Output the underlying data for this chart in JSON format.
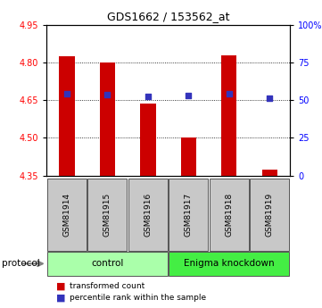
{
  "title": "GDS1662 / 153562_at",
  "samples": [
    "GSM81914",
    "GSM81915",
    "GSM81916",
    "GSM81917",
    "GSM81918",
    "GSM81919"
  ],
  "transformed_counts": [
    4.825,
    4.8,
    4.635,
    4.5,
    4.828,
    4.375
  ],
  "percentile_ranks": [
    54.5,
    53.5,
    52.5,
    52.8,
    54.5,
    51.5
  ],
  "ylim_left": [
    4.35,
    4.95
  ],
  "ylim_right": [
    0,
    100
  ],
  "y_right_ticks": [
    0,
    25,
    50,
    75,
    100
  ],
  "y_right_ticklabels": [
    "0",
    "25",
    "50",
    "75",
    "100%"
  ],
  "y_left_ticks": [
    4.35,
    4.5,
    4.65,
    4.8,
    4.95
  ],
  "bar_color": "#cc0000",
  "dot_color": "#3333bb",
  "sample_box_color": "#c8c8c8",
  "control_color": "#aaffaa",
  "knockdown_color": "#44ee44",
  "legend_items": [
    {
      "label": "transformed count",
      "color": "#cc0000"
    },
    {
      "label": "percentile rank within the sample",
      "color": "#3333bb"
    }
  ]
}
